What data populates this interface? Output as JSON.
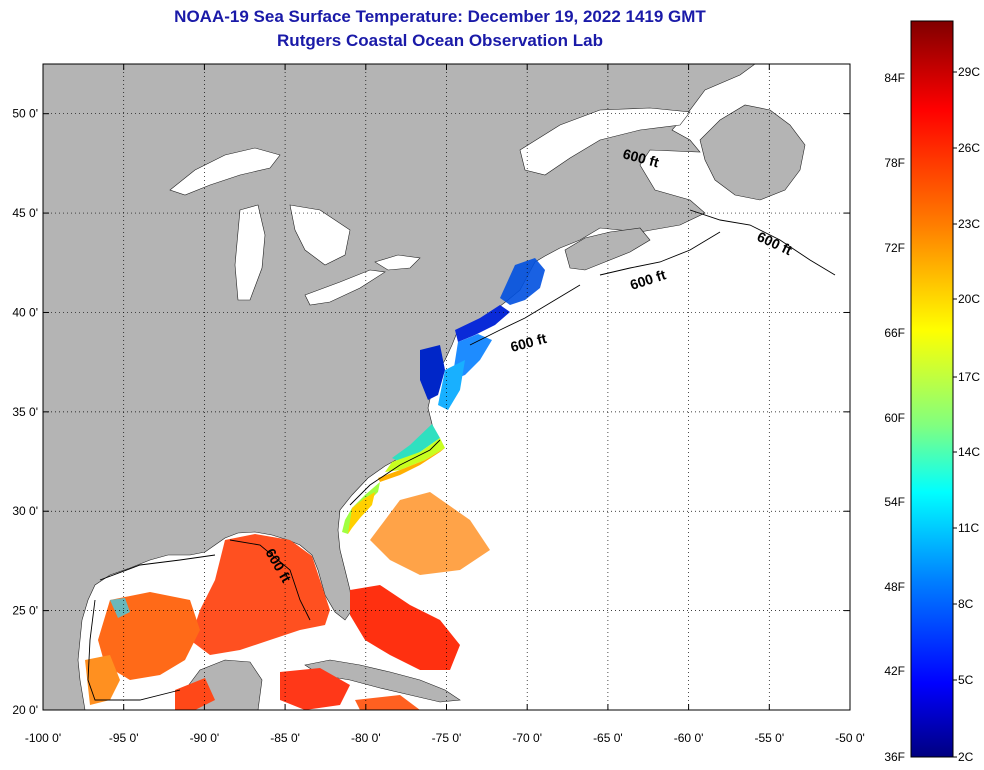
{
  "title": {
    "line1": "NOAA-19 Sea Surface Temperature:  December 19, 2022 1419 GMT",
    "line2": "Rutgers Coastal Ocean Observation Lab"
  },
  "map": {
    "lon_range": [
      -100,
      -50
    ],
    "lat_range": [
      20,
      52.5
    ],
    "lon_ticks": [
      {
        "value": -100,
        "label": "-100 0'"
      },
      {
        "value": -95,
        "label": "-95 0'"
      },
      {
        "value": -90,
        "label": "-90 0'"
      },
      {
        "value": -85,
        "label": "-85 0'"
      },
      {
        "value": -80,
        "label": "-80 0'"
      },
      {
        "value": -75,
        "label": "-75 0'"
      },
      {
        "value": -70,
        "label": "-70 0'"
      },
      {
        "value": -65,
        "label": "-65 0'"
      },
      {
        "value": -60,
        "label": "-60 0'"
      },
      {
        "value": -55,
        "label": "-55 0'"
      },
      {
        "value": -50,
        "label": "-50 0'"
      }
    ],
    "lat_ticks": [
      {
        "value": 20,
        "label": "20 0'"
      },
      {
        "value": 25,
        "label": "25 0'"
      },
      {
        "value": 30,
        "label": "30 0'"
      },
      {
        "value": 35,
        "label": "35 0'"
      },
      {
        "value": 40,
        "label": "40 0'"
      },
      {
        "value": 45,
        "label": "45 0'"
      },
      {
        "value": 50,
        "label": "50 0'"
      }
    ],
    "contour_labels": [
      "600 ft",
      "600 ft",
      "600 ft",
      "600 ft",
      "600 ft"
    ],
    "colors": {
      "land": "#b4b4b4",
      "ocean_nodata": "#ffffff",
      "grid": "#000000"
    }
  },
  "colorbar": {
    "fahrenheit_labels": [
      "84F",
      "78F",
      "72F",
      "66F",
      "60F",
      "54F",
      "48F",
      "42F",
      "36F"
    ],
    "celsius_labels": [
      "29C",
      "26C",
      "23C",
      "20C",
      "17C",
      "14C",
      "11C",
      "8C",
      "5C",
      "2C"
    ],
    "colors": [
      "#800000",
      "#ff0000",
      "#ff8000",
      "#ffff00",
      "#80ff80",
      "#00ffff",
      "#0080ff",
      "#0000ff",
      "#000080"
    ]
  }
}
